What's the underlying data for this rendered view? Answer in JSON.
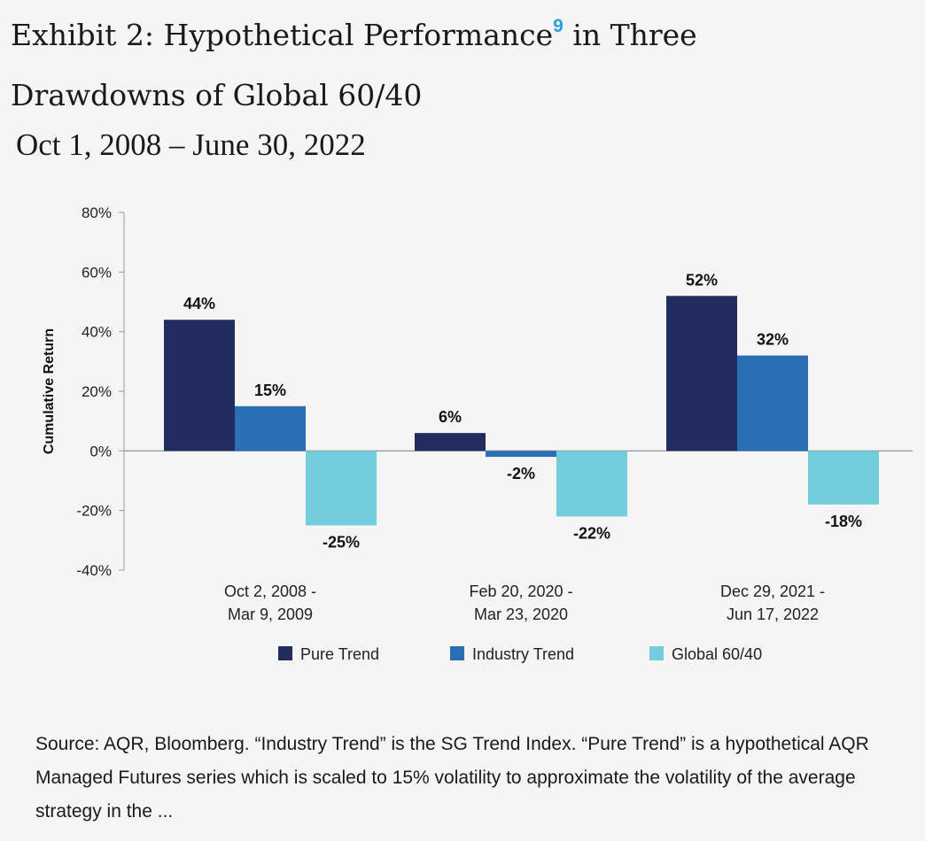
{
  "title": {
    "line1": "Exhibit 2: Hypothetical  Performance",
    "footnote_ref": "9",
    "line1_end": " in Three",
    "line2": "Drawdowns of Global 60/40"
  },
  "subtitle": "Oct 1, 2008 – June 30, 2022",
  "source_note": "Source: AQR, Bloomberg. “Industry Trend” is the SG Trend Index. “Pure Trend” is a hypothetical AQR Managed Futures series which is scaled to 15% volatility to approximate the volatility of the average strategy in the ...",
  "chart_data": {
    "type": "bar",
    "title": "",
    "xlabel": "",
    "ylabel": "Cumulative Return",
    "ylim": [
      -40,
      80
    ],
    "yticks": [
      80,
      60,
      40,
      20,
      0,
      -20,
      -40
    ],
    "ytick_labels": [
      "80%",
      "60%",
      "40%",
      "20%",
      "0%",
      "-20%",
      "-40%"
    ],
    "categories": [
      [
        "Oct 2, 2008 -",
        "Mar 9, 2009"
      ],
      [
        "Feb 20, 2020 -",
        "Mar 23, 2020"
      ],
      [
        "Dec 29, 2021 -",
        "Jun 17, 2022"
      ]
    ],
    "series": [
      {
        "name": "Pure Trend",
        "color": "#222c5e",
        "values": [
          44,
          6,
          52
        ],
        "labels": [
          "44%",
          "6%",
          "52%"
        ]
      },
      {
        "name": "Industry Trend",
        "color": "#2a6eb6",
        "values": [
          15,
          -2,
          32
        ],
        "labels": [
          "15%",
          "-2%",
          "32%"
        ]
      },
      {
        "name": "Global 60/40",
        "color": "#73cddb",
        "values": [
          -25,
          -22,
          -18
        ],
        "labels": [
          "-25%",
          "-22%",
          "-18%"
        ]
      }
    ],
    "legend": "bottom",
    "grid": false
  }
}
